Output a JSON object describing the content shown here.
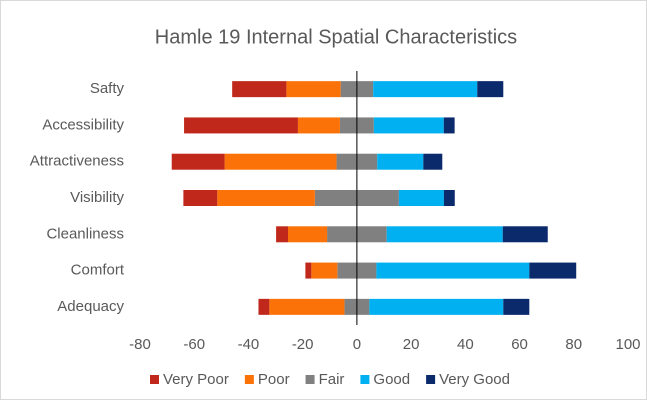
{
  "chart_data": {
    "type": "diverging_stacked_bar",
    "title": "Hamle 19 Internal Spatial Characteristics",
    "categories": [
      "Safty",
      "Accessibility",
      "Attractiveness",
      "Visibility",
      "Cleanliness",
      "Comfort",
      "Adequacy"
    ],
    "series": [
      {
        "name": "Very Poor",
        "color": "#c0281c",
        "values": [
          -20,
          -42,
          -19.5,
          -12.5,
          -4.4,
          -2.2,
          -4
        ]
      },
      {
        "name": "Poor",
        "color": "#fb7308",
        "values": [
          -20,
          -15.5,
          -41.3,
          -36,
          -14.4,
          -9.6,
          -27.7
        ]
      },
      {
        "name": "Fair",
        "color": "#808080",
        "values": [
          12,
          12.5,
          15,
          31,
          22,
          14.4,
          9.2
        ]
      },
      {
        "name": "Good",
        "color": "#00b0f0",
        "values": [
          38.4,
          25.8,
          17,
          16.6,
          42.8,
          56.4,
          49.4
        ]
      },
      {
        "name": "Very Good",
        "color": "#0b2a6b",
        "values": [
          9.6,
          4,
          7,
          4,
          16.6,
          17.3,
          9.6
        ]
      }
    ],
    "xlim": [
      -80,
      100
    ],
    "xticks": [
      -80,
      -60,
      -40,
      -20,
      0,
      20,
      40,
      60,
      80,
      100
    ],
    "legend": "bottom"
  }
}
